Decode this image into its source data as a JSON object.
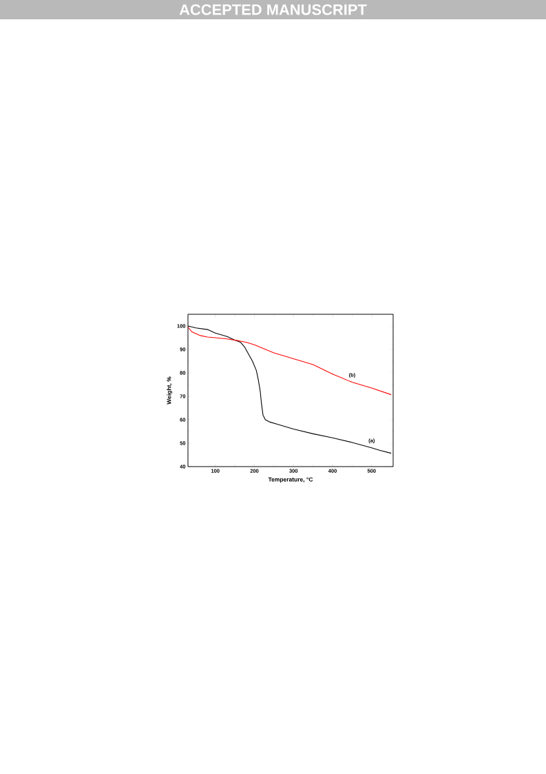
{
  "chart_data": {
    "type": "line",
    "xlabel": "Temperature, °C",
    "ylabel": "Weight, %",
    "annotations": [
      "ACCEPTED MANUSCRIPT"
    ],
    "xlim": [
      30,
      555
    ],
    "ylim": [
      40,
      105
    ],
    "xticks": [
      100,
      200,
      300,
      400,
      500
    ],
    "yticks": [
      40,
      50,
      60,
      70,
      80,
      90,
      100
    ],
    "series": [
      {
        "name": "(a)",
        "color": "#000000",
        "x": [
          30,
          50,
          80,
          100,
          130,
          150,
          165,
          175,
          185,
          195,
          205,
          210,
          215,
          218,
          222,
          228,
          240,
          260,
          300,
          350,
          400,
          450,
          500,
          520,
          550
        ],
        "values": [
          100,
          99.2,
          98.5,
          97,
          95.5,
          94,
          93,
          91,
          88,
          85,
          81,
          77,
          72,
          67,
          62,
          60,
          59,
          58,
          56,
          54,
          52.3,
          50.3,
          48,
          47,
          45.7
        ]
      },
      {
        "name": "(b)",
        "color": "#ff0000",
        "x": [
          30,
          40,
          60,
          80,
          100,
          130,
          160,
          180,
          200,
          250,
          300,
          350,
          400,
          450,
          500,
          550
        ],
        "values": [
          99.5,
          97.5,
          96,
          95.3,
          95,
          94.5,
          93.7,
          93,
          92,
          88.5,
          86,
          83.5,
          79.5,
          76,
          73.5,
          70.7
        ]
      }
    ]
  }
}
